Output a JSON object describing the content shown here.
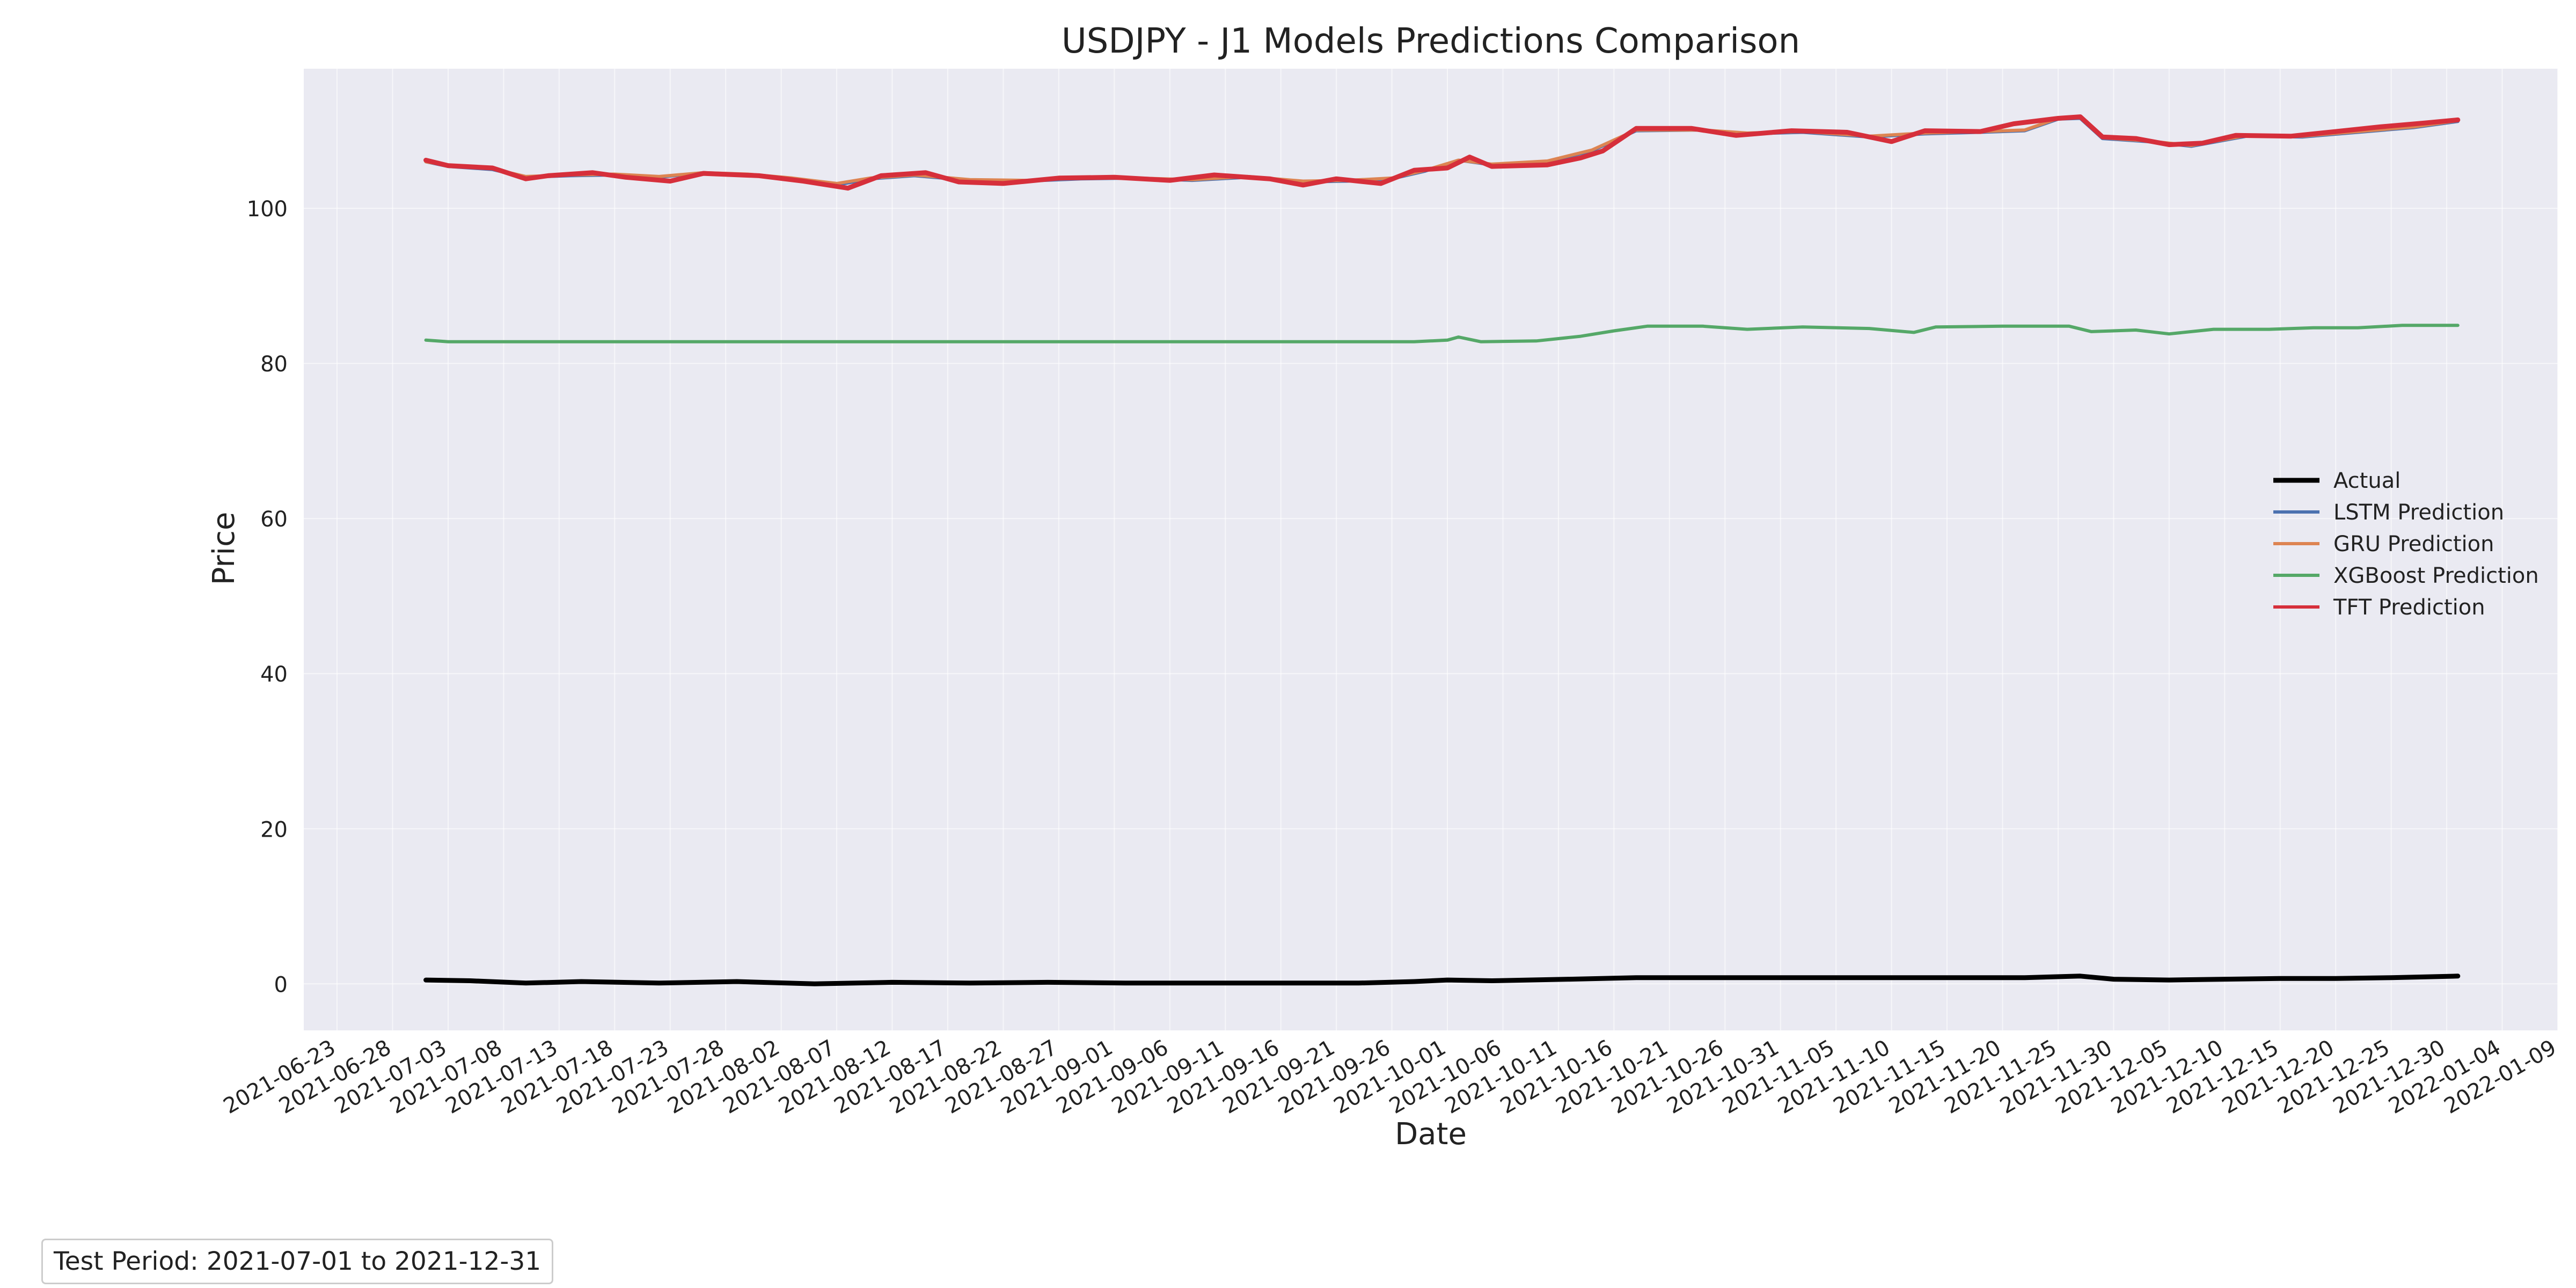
{
  "chart_data": {
    "type": "line",
    "title": "USDJPY - J1 Models Predictions Comparison",
    "xlabel": "Date",
    "ylabel": "Price",
    "xlim": [
      "2021-06-20",
      "2022-01-09"
    ],
    "ylim": [
      -6,
      118
    ],
    "y_ticks": [
      0,
      20,
      40,
      60,
      80,
      100
    ],
    "x_ticks": [
      "2021-06-23",
      "2021-06-28",
      "2021-07-03",
      "2021-07-08",
      "2021-07-13",
      "2021-07-18",
      "2021-07-23",
      "2021-07-28",
      "2021-08-02",
      "2021-08-07",
      "2021-08-12",
      "2021-08-17",
      "2021-08-22",
      "2021-08-27",
      "2021-09-01",
      "2021-09-06",
      "2021-09-11",
      "2021-09-16",
      "2021-09-21",
      "2021-09-26",
      "2021-10-01",
      "2021-10-06",
      "2021-10-11",
      "2021-10-16",
      "2021-10-21",
      "2021-10-26",
      "2021-10-31",
      "2021-11-05",
      "2021-11-10",
      "2021-11-15",
      "2021-11-20",
      "2021-11-25",
      "2021-11-30",
      "2021-12-05",
      "2021-12-10",
      "2021-12-15",
      "2021-12-20",
      "2021-12-25",
      "2021-12-30",
      "2022-01-04",
      "2022-01-09"
    ],
    "grid": true,
    "legend_position": "center-right",
    "background": "#eaeaf2",
    "series": [
      {
        "name": "Actual",
        "color": "#000000",
        "points": [
          [
            "2021-07-01",
            0.5
          ],
          [
            "2021-07-05",
            0.4
          ],
          [
            "2021-07-10",
            0.1
          ],
          [
            "2021-07-15",
            0.3
          ],
          [
            "2021-07-22",
            0.1
          ],
          [
            "2021-07-29",
            0.3
          ],
          [
            "2021-08-05",
            0.0
          ],
          [
            "2021-08-12",
            0.2
          ],
          [
            "2021-08-19",
            0.1
          ],
          [
            "2021-08-26",
            0.2
          ],
          [
            "2021-09-02",
            0.1
          ],
          [
            "2021-09-09",
            0.1
          ],
          [
            "2021-09-16",
            0.1
          ],
          [
            "2021-09-23",
            0.1
          ],
          [
            "2021-09-28",
            0.3
          ],
          [
            "2021-10-01",
            0.5
          ],
          [
            "2021-10-05",
            0.4
          ],
          [
            "2021-10-12",
            0.6
          ],
          [
            "2021-10-18",
            0.8
          ],
          [
            "2021-10-25",
            0.8
          ],
          [
            "2021-11-01",
            0.8
          ],
          [
            "2021-11-08",
            0.8
          ],
          [
            "2021-11-15",
            0.8
          ],
          [
            "2021-11-22",
            0.8
          ],
          [
            "2021-11-27",
            1.0
          ],
          [
            "2021-11-30",
            0.6
          ],
          [
            "2021-12-05",
            0.5
          ],
          [
            "2021-12-10",
            0.6
          ],
          [
            "2021-12-15",
            0.7
          ],
          [
            "2021-12-20",
            0.7
          ],
          [
            "2021-12-25",
            0.8
          ],
          [
            "2021-12-31",
            1.0
          ]
        ]
      },
      {
        "name": "LSTM Prediction",
        "color": "#4c72b0",
        "points": [
          [
            "2021-07-01",
            106.0
          ],
          [
            "2021-07-03",
            105.4
          ],
          [
            "2021-07-07",
            105.0
          ],
          [
            "2021-07-10",
            104.0
          ],
          [
            "2021-07-14",
            104.2
          ],
          [
            "2021-07-18",
            104.3
          ],
          [
            "2021-07-22",
            104.0
          ],
          [
            "2021-07-26",
            104.6
          ],
          [
            "2021-07-30",
            104.3
          ],
          [
            "2021-08-03",
            103.8
          ],
          [
            "2021-08-07",
            103.0
          ],
          [
            "2021-08-10",
            103.8
          ],
          [
            "2021-08-14",
            104.2
          ],
          [
            "2021-08-19",
            103.6
          ],
          [
            "2021-08-24",
            103.5
          ],
          [
            "2021-08-29",
            103.8
          ],
          [
            "2021-09-03",
            103.9
          ],
          [
            "2021-09-08",
            103.6
          ],
          [
            "2021-09-13",
            104.0
          ],
          [
            "2021-09-18",
            103.4
          ],
          [
            "2021-09-22",
            103.5
          ],
          [
            "2021-09-26",
            103.8
          ],
          [
            "2021-09-29",
            104.8
          ],
          [
            "2021-10-02",
            106.2
          ],
          [
            "2021-10-05",
            105.6
          ],
          [
            "2021-10-10",
            106.0
          ],
          [
            "2021-10-14",
            107.4
          ],
          [
            "2021-10-18",
            110.0
          ],
          [
            "2021-10-24",
            110.1
          ],
          [
            "2021-10-28",
            109.6
          ],
          [
            "2021-11-02",
            109.8
          ],
          [
            "2021-11-08",
            109.2
          ],
          [
            "2021-11-13",
            109.6
          ],
          [
            "2021-11-18",
            109.8
          ],
          [
            "2021-11-22",
            110.0
          ],
          [
            "2021-11-25",
            111.5
          ],
          [
            "2021-11-27",
            111.6
          ],
          [
            "2021-11-29",
            109.0
          ],
          [
            "2021-12-03",
            108.6
          ],
          [
            "2021-12-07",
            108.0
          ],
          [
            "2021-12-12",
            109.3
          ],
          [
            "2021-12-17",
            109.2
          ],
          [
            "2021-12-22",
            109.8
          ],
          [
            "2021-12-27",
            110.4
          ],
          [
            "2021-12-31",
            111.2
          ]
        ]
      },
      {
        "name": "GRU Prediction",
        "color": "#dd8452",
        "points": [
          [
            "2021-07-01",
            106.0
          ],
          [
            "2021-07-03",
            105.5
          ],
          [
            "2021-07-07",
            105.1
          ],
          [
            "2021-07-10",
            104.1
          ],
          [
            "2021-07-14",
            104.3
          ],
          [
            "2021-07-18",
            104.4
          ],
          [
            "2021-07-22",
            104.1
          ],
          [
            "2021-07-26",
            104.6
          ],
          [
            "2021-07-30",
            104.4
          ],
          [
            "2021-08-03",
            103.9
          ],
          [
            "2021-08-07",
            103.2
          ],
          [
            "2021-08-10",
            103.9
          ],
          [
            "2021-08-14",
            104.3
          ],
          [
            "2021-08-19",
            103.7
          ],
          [
            "2021-08-24",
            103.6
          ],
          [
            "2021-08-29",
            103.9
          ],
          [
            "2021-09-03",
            103.9
          ],
          [
            "2021-09-08",
            103.7
          ],
          [
            "2021-09-13",
            104.1
          ],
          [
            "2021-09-18",
            103.5
          ],
          [
            "2021-09-22",
            103.6
          ],
          [
            "2021-09-26",
            103.9
          ],
          [
            "2021-09-29",
            104.9
          ],
          [
            "2021-10-02",
            106.2
          ],
          [
            "2021-10-05",
            105.7
          ],
          [
            "2021-10-10",
            106.1
          ],
          [
            "2021-10-14",
            107.5
          ],
          [
            "2021-10-18",
            110.1
          ],
          [
            "2021-10-24",
            110.1
          ],
          [
            "2021-10-28",
            109.7
          ],
          [
            "2021-11-02",
            109.9
          ],
          [
            "2021-11-08",
            109.3
          ],
          [
            "2021-11-13",
            109.7
          ],
          [
            "2021-11-18",
            109.9
          ],
          [
            "2021-11-22",
            110.1
          ],
          [
            "2021-11-25",
            111.6
          ],
          [
            "2021-11-27",
            111.7
          ],
          [
            "2021-11-29",
            109.1
          ],
          [
            "2021-12-03",
            108.7
          ],
          [
            "2021-12-07",
            108.1
          ],
          [
            "2021-12-12",
            109.4
          ],
          [
            "2021-12-17",
            109.3
          ],
          [
            "2021-12-22",
            109.9
          ],
          [
            "2021-12-27",
            110.5
          ],
          [
            "2021-12-31",
            111.3
          ]
        ]
      },
      {
        "name": "XGBoost Prediction",
        "color": "#55a868",
        "points": [
          [
            "2021-07-01",
            83.0
          ],
          [
            "2021-07-03",
            82.8
          ],
          [
            "2021-07-15",
            82.8
          ],
          [
            "2021-08-01",
            82.8
          ],
          [
            "2021-08-20",
            82.8
          ],
          [
            "2021-09-10",
            82.8
          ],
          [
            "2021-09-28",
            82.8
          ],
          [
            "2021-10-01",
            83.0
          ],
          [
            "2021-10-02",
            83.4
          ],
          [
            "2021-10-04",
            82.8
          ],
          [
            "2021-10-09",
            82.9
          ],
          [
            "2021-10-13",
            83.5
          ],
          [
            "2021-10-16",
            84.2
          ],
          [
            "2021-10-19",
            84.8
          ],
          [
            "2021-10-24",
            84.8
          ],
          [
            "2021-10-28",
            84.4
          ],
          [
            "2021-11-02",
            84.7
          ],
          [
            "2021-11-08",
            84.5
          ],
          [
            "2021-11-12",
            84.0
          ],
          [
            "2021-11-14",
            84.7
          ],
          [
            "2021-11-20",
            84.8
          ],
          [
            "2021-11-26",
            84.8
          ],
          [
            "2021-11-28",
            84.1
          ],
          [
            "2021-12-02",
            84.3
          ],
          [
            "2021-12-05",
            83.8
          ],
          [
            "2021-12-09",
            84.4
          ],
          [
            "2021-12-14",
            84.4
          ],
          [
            "2021-12-18",
            84.6
          ],
          [
            "2021-12-22",
            84.6
          ],
          [
            "2021-12-26",
            84.9
          ],
          [
            "2021-12-31",
            84.9
          ]
        ]
      },
      {
        "name": "TFT Prediction",
        "color": "#d62f3b",
        "points": [
          [
            "2021-07-01",
            106.2
          ],
          [
            "2021-07-03",
            105.5
          ],
          [
            "2021-07-07",
            105.2
          ],
          [
            "2021-07-10",
            103.8
          ],
          [
            "2021-07-12",
            104.2
          ],
          [
            "2021-07-16",
            104.6
          ],
          [
            "2021-07-19",
            104.0
          ],
          [
            "2021-07-23",
            103.5
          ],
          [
            "2021-07-26",
            104.5
          ],
          [
            "2021-07-31",
            104.2
          ],
          [
            "2021-08-04",
            103.5
          ],
          [
            "2021-08-08",
            102.6
          ],
          [
            "2021-08-11",
            104.2
          ],
          [
            "2021-08-15",
            104.6
          ],
          [
            "2021-08-18",
            103.4
          ],
          [
            "2021-08-22",
            103.2
          ],
          [
            "2021-08-27",
            103.9
          ],
          [
            "2021-09-01",
            104.0
          ],
          [
            "2021-09-06",
            103.6
          ],
          [
            "2021-09-10",
            104.3
          ],
          [
            "2021-09-15",
            103.8
          ],
          [
            "2021-09-18",
            103.0
          ],
          [
            "2021-09-21",
            103.8
          ],
          [
            "2021-09-25",
            103.2
          ],
          [
            "2021-09-28",
            104.9
          ],
          [
            "2021-10-01",
            105.2
          ],
          [
            "2021-10-03",
            106.6
          ],
          [
            "2021-10-05",
            105.4
          ],
          [
            "2021-10-10",
            105.6
          ],
          [
            "2021-10-13",
            106.5
          ],
          [
            "2021-10-15",
            107.4
          ],
          [
            "2021-10-18",
            110.3
          ],
          [
            "2021-10-23",
            110.3
          ],
          [
            "2021-10-27",
            109.4
          ],
          [
            "2021-11-01",
            110.0
          ],
          [
            "2021-11-06",
            109.8
          ],
          [
            "2021-11-10",
            108.6
          ],
          [
            "2021-11-13",
            110.0
          ],
          [
            "2021-11-18",
            109.9
          ],
          [
            "2021-11-21",
            110.9
          ],
          [
            "2021-11-25",
            111.6
          ],
          [
            "2021-11-27",
            111.8
          ],
          [
            "2021-11-29",
            109.2
          ],
          [
            "2021-12-02",
            109.0
          ],
          [
            "2021-12-05",
            108.2
          ],
          [
            "2021-12-08",
            108.4
          ],
          [
            "2021-12-11",
            109.4
          ],
          [
            "2021-12-16",
            109.3
          ],
          [
            "2021-12-20",
            109.9
          ],
          [
            "2021-12-24",
            110.5
          ],
          [
            "2021-12-28",
            111.0
          ],
          [
            "2021-12-31",
            111.4
          ]
        ]
      }
    ]
  },
  "footnote": "Test Period: 2021-07-01 to 2021-12-31"
}
